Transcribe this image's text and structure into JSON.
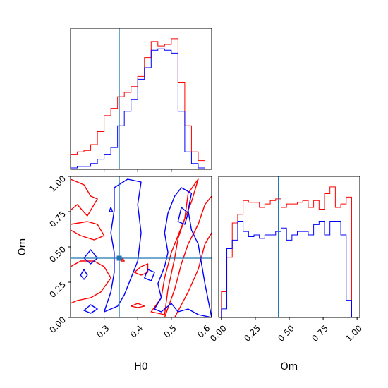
{
  "colors": {
    "series_a": "#ff0000",
    "series_b": "#0000ff",
    "truth": "#1f77b4",
    "axes": "#000000"
  },
  "chart_data": [
    {
      "panel": "top-left",
      "type": "histogram",
      "variable": "H0",
      "xlim": [
        0.2,
        0.62
      ],
      "bins": [
        0.2,
        0.22,
        0.24,
        0.26,
        0.28,
        0.3,
        0.32,
        0.34,
        0.36,
        0.38,
        0.4,
        0.42,
        0.44,
        0.46,
        0.48,
        0.5,
        0.52,
        0.54,
        0.56,
        0.58,
        0.6,
        0.62
      ],
      "series": [
        {
          "color": "series_a",
          "values": [
            10,
            12,
            13,
            17,
            26,
            37,
            42,
            50,
            53,
            57,
            64,
            77,
            88,
            85,
            86,
            90,
            60,
            30,
            12,
            6,
            0
          ]
        },
        {
          "color": "series_b",
          "values": [
            1,
            2,
            2,
            4,
            7,
            10,
            15,
            30,
            40,
            48,
            62,
            70,
            82,
            83,
            82,
            80,
            40,
            12,
            4,
            1,
            0
          ]
        }
      ],
      "truth_x": 0.345
    },
    {
      "panel": "bottom-left",
      "type": "contour",
      "xlabel": "H0",
      "ylabel": "Om",
      "xlim": [
        0.2,
        0.62
      ],
      "ylim": [
        0.0,
        1.0
      ],
      "xticks": [
        "0.3",
        "0.4",
        "0.5",
        "0.6"
      ],
      "yticks": [
        "0.00",
        "0.25",
        "0.50",
        "0.75",
        "1.00"
      ],
      "truth_point": [
        0.345,
        0.42
      ],
      "series": [
        {
          "color": "series_a",
          "contours": [
            [
              [
                0.2,
                0.98
              ],
              [
                0.24,
                0.94
              ],
              [
                0.26,
                0.86
              ],
              [
                0.28,
                0.84
              ],
              [
                0.25,
                0.72
              ],
              [
                0.22,
                0.8
              ],
              [
                0.2,
                0.76
              ]
            ],
            [
              [
                0.2,
                0.62
              ],
              [
                0.23,
                0.58
              ],
              [
                0.27,
                0.55
              ],
              [
                0.3,
                0.58
              ],
              [
                0.28,
                0.66
              ],
              [
                0.25,
                0.68
              ],
              [
                0.2,
                0.66
              ]
            ],
            [
              [
                0.2,
                0.36
              ],
              [
                0.23,
                0.4
              ],
              [
                0.27,
                0.4
              ],
              [
                0.3,
                0.36
              ],
              [
                0.32,
                0.28
              ],
              [
                0.29,
                0.18
              ],
              [
                0.26,
                0.14
              ],
              [
                0.22,
                0.12
              ],
              [
                0.2,
                0.1
              ]
            ],
            [
              [
                0.44,
                0.04
              ],
              [
                0.48,
                0.02
              ],
              [
                0.49,
                0.2
              ],
              [
                0.51,
                0.42
              ],
              [
                0.52,
                0.56
              ],
              [
                0.54,
                0.7
              ],
              [
                0.55,
                0.88
              ],
              [
                0.58,
                0.98
              ],
              [
                0.56,
                0.82
              ],
              [
                0.53,
                0.64
              ],
              [
                0.5,
                0.46
              ],
              [
                0.48,
                0.28
              ],
              [
                0.47,
                0.14
              ]
            ],
            [
              [
                0.48,
                0.0
              ],
              [
                0.51,
                0.2
              ],
              [
                0.53,
                0.38
              ],
              [
                0.55,
                0.52
              ],
              [
                0.58,
                0.66
              ],
              [
                0.6,
                0.8
              ],
              [
                0.62,
                0.86
              ]
            ],
            [
              [
                0.51,
                0.0
              ],
              [
                0.55,
                0.18
              ],
              [
                0.58,
                0.34
              ],
              [
                0.6,
                0.52
              ],
              [
                0.62,
                0.6
              ]
            ],
            [
              [
                0.39,
                0.32
              ],
              [
                0.41,
                0.36
              ],
              [
                0.43,
                0.38
              ],
              [
                0.43,
                0.32
              ],
              [
                0.41,
                0.3
              ]
            ],
            [
              [
                0.38,
                0.08
              ],
              [
                0.4,
                0.1
              ],
              [
                0.42,
                0.08
              ],
              [
                0.4,
                0.07
              ]
            ],
            [
              [
                0.35,
                0.4
              ],
              [
                0.355,
                0.42
              ],
              [
                0.36,
                0.4
              ]
            ]
          ]
        },
        {
          "color": "series_b",
          "contours": [
            [
              [
                0.33,
                0.92
              ],
              [
                0.37,
                0.98
              ],
              [
                0.41,
                0.96
              ],
              [
                0.4,
                0.8
              ],
              [
                0.41,
                0.6
              ],
              [
                0.4,
                0.4
              ],
              [
                0.38,
                0.28
              ],
              [
                0.36,
                0.16
              ],
              [
                0.34,
                0.08
              ],
              [
                0.3,
                0.04
              ],
              [
                0.32,
                0.18
              ],
              [
                0.33,
                0.32
              ],
              [
                0.33,
                0.46
              ],
              [
                0.32,
                0.6
              ],
              [
                0.33,
                0.76
              ]
            ],
            [
              [
                0.45,
                0.06
              ],
              [
                0.47,
                0.14
              ],
              [
                0.46,
                0.24
              ],
              [
                0.48,
                0.36
              ],
              [
                0.49,
                0.46
              ],
              [
                0.48,
                0.6
              ],
              [
                0.49,
                0.74
              ],
              [
                0.51,
                0.86
              ],
              [
                0.53,
                0.92
              ],
              [
                0.56,
                0.88
              ],
              [
                0.55,
                0.76
              ],
              [
                0.56,
                0.62
              ],
              [
                0.58,
                0.52
              ],
              [
                0.59,
                0.38
              ],
              [
                0.6,
                0.24
              ],
              [
                0.61,
                0.12
              ],
              [
                0.62,
                0.0
              ],
              [
                0.58,
                0.02
              ],
              [
                0.55,
                0.06
              ],
              [
                0.52,
                0.04
              ],
              [
                0.5,
                0.1
              ],
              [
                0.47,
                0.04
              ]
            ],
            [
              [
                0.52,
                0.68
              ],
              [
                0.53,
                0.78
              ],
              [
                0.55,
                0.74
              ],
              [
                0.54,
                0.66
              ]
            ],
            [
              [
                0.42,
                0.28
              ],
              [
                0.43,
                0.34
              ],
              [
                0.45,
                0.32
              ],
              [
                0.44,
                0.26
              ]
            ],
            [
              [
                0.24,
                0.42
              ],
              [
                0.26,
                0.48
              ],
              [
                0.28,
                0.42
              ],
              [
                0.26,
                0.38
              ]
            ],
            [
              [
                0.23,
                0.3
              ],
              [
                0.24,
                0.34
              ],
              [
                0.25,
                0.3
              ],
              [
                0.24,
                0.27
              ]
            ],
            [
              [
                0.24,
                0.05
              ],
              [
                0.26,
                0.09
              ],
              [
                0.28,
                0.06
              ],
              [
                0.26,
                0.03
              ]
            ],
            [
              [
                0.315,
                0.75
              ],
              [
                0.32,
                0.78
              ],
              [
                0.325,
                0.75
              ]
            ]
          ]
        }
      ]
    },
    {
      "panel": "bottom-right",
      "type": "histogram",
      "xlabel": "Om",
      "xlim": [
        -0.02,
        1.02
      ],
      "xticks": [
        "0.00",
        "0.25",
        "0.50",
        "0.75",
        "1.00"
      ],
      "bins": [
        0.0,
        0.04,
        0.08,
        0.12,
        0.16,
        0.2,
        0.24,
        0.28,
        0.32,
        0.36,
        0.4,
        0.44,
        0.48,
        0.52,
        0.56,
        0.6,
        0.64,
        0.68,
        0.72,
        0.76,
        0.8,
        0.84,
        0.88,
        0.92,
        0.96,
        1.0
      ],
      "series": [
        {
          "color": "series_a",
          "values": [
            15,
            35,
            55,
            60,
            68,
            67,
            67,
            64,
            66,
            68,
            69,
            64,
            66,
            66,
            67,
            68,
            64,
            68,
            63,
            72,
            76,
            64,
            66,
            70,
            0
          ]
        },
        {
          "color": "series_b",
          "values": [
            5,
            40,
            45,
            56,
            50,
            47,
            48,
            46,
            48,
            48,
            50,
            52,
            45,
            48,
            50,
            50,
            48,
            54,
            56,
            48,
            56,
            56,
            48,
            10,
            0
          ]
        }
      ],
      "truth_x": 0.42
    }
  ]
}
